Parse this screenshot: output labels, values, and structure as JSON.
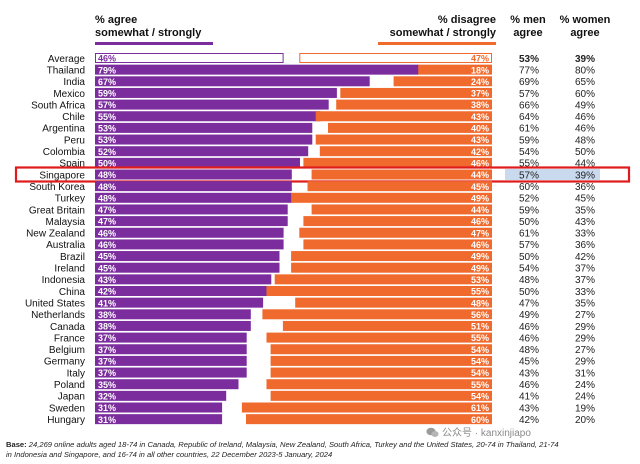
{
  "headers": {
    "agree_line1": "% agree",
    "agree_line2": "somewhat / strongly",
    "disagree_line1": "% disagree",
    "disagree_line2": "somewhat / strongly",
    "men_line1": "% men",
    "men_line2": "agree",
    "women_line1": "% women",
    "women_line2": "agree"
  },
  "chart_data": {
    "type": "bar",
    "xlim": [
      0,
      100
    ],
    "highlight_category": "Singapore",
    "categories": [
      "Average",
      "Thailand",
      "India",
      "Mexico",
      "South Africa",
      "Chile",
      "Argentina",
      "Peru",
      "Colombia",
      "Spain",
      "Singapore",
      "South Korea",
      "Turkey",
      "Great Britain",
      "Malaysia",
      "New Zealand",
      "Australia",
      "Brazil",
      "Ireland",
      "Indonesia",
      "China",
      "United States",
      "Netherlands",
      "Canada",
      "France",
      "Belgium",
      "Germany",
      "Italy",
      "Poland",
      "Japan",
      "Sweden",
      "Hungary"
    ],
    "series": [
      {
        "name": "% agree somewhat / strongly",
        "color": "#7b2d9e",
        "values": [
          46,
          79,
          67,
          59,
          57,
          55,
          53,
          53,
          52,
          50,
          48,
          48,
          48,
          47,
          47,
          46,
          46,
          45,
          45,
          43,
          42,
          41,
          38,
          38,
          37,
          37,
          37,
          37,
          35,
          32,
          31,
          31
        ],
        "labels": [
          "46%",
          "79%",
          "67%",
          "59%",
          "57%",
          "55%",
          "53%",
          "53%",
          "52%",
          "50%",
          "48%",
          "48%",
          "48%",
          "47%",
          "47%",
          "46%",
          "46%",
          "45%",
          "45%",
          "43%",
          "42%",
          "41%",
          "38%",
          "38%",
          "37%",
          "37%",
          "37%",
          "37%",
          "35%",
          "32%",
          "31%",
          "31%"
        ]
      },
      {
        "name": "% disagree somewhat / strongly",
        "color": "#f06a2d",
        "values": [
          47,
          18,
          24,
          37,
          38,
          43,
          40,
          43,
          42,
          46,
          44,
          45,
          49,
          44,
          46,
          47,
          46,
          49,
          49,
          53,
          55,
          48,
          56,
          51,
          55,
          54,
          54,
          54,
          55,
          54,
          61,
          60
        ],
        "labels": [
          "47%",
          "18%",
          "24%",
          "37%",
          "38%",
          "43%",
          "40%",
          "43%",
          "42%",
          "46%",
          "44%",
          "45%",
          "49%",
          "44%",
          "46%",
          "47%",
          "46%",
          "49%",
          "49%",
          "53%",
          "55%",
          "48%",
          "56%",
          "51%",
          "55%",
          "54%",
          "54%",
          "54%",
          "55%",
          "54%",
          "61%",
          "60%"
        ]
      },
      {
        "name": "% men agree",
        "values": [
          53,
          77,
          69,
          57,
          66,
          64,
          61,
          59,
          54,
          55,
          57,
          60,
          52,
          59,
          50,
          61,
          57,
          50,
          54,
          48,
          50,
          47,
          49,
          46,
          46,
          48,
          45,
          43,
          46,
          41,
          43,
          42
        ],
        "labels": [
          "53%",
          "77%",
          "69%",
          "57%",
          "66%",
          "64%",
          "61%",
          "59%",
          "54%",
          "55%",
          "57%",
          "60%",
          "52%",
          "59%",
          "50%",
          "61%",
          "57%",
          "50%",
          "54%",
          "48%",
          "50%",
          "47%",
          "49%",
          "46%",
          "46%",
          "48%",
          "45%",
          "43%",
          "46%",
          "41%",
          "43%",
          "42%"
        ]
      },
      {
        "name": "% women agree",
        "values": [
          39,
          80,
          65,
          60,
          49,
          46,
          46,
          48,
          50,
          44,
          39,
          36,
          45,
          35,
          43,
          33,
          36,
          42,
          37,
          37,
          33,
          35,
          27,
          29,
          29,
          27,
          29,
          31,
          24,
          24,
          19,
          20
        ],
        "labels": [
          "39%",
          "80%",
          "65%",
          "60%",
          "49%",
          "46%",
          "46%",
          "48%",
          "50%",
          "44%",
          "39%",
          "36%",
          "45%",
          "35%",
          "43%",
          "33%",
          "36%",
          "42%",
          "37%",
          "37%",
          "33%",
          "35%",
          "27%",
          "29%",
          "29%",
          "27%",
          "29%",
          "31%",
          "24%",
          "24%",
          "19%",
          "20%"
        ]
      }
    ]
  },
  "footer": {
    "base_label": "Base:",
    "base_text": " 24,269 online adults aged 18-74 in Canada, Republic of Ireland, Malaysia, New Zealand, South Africa, Turkey and the United States, 20-74 in Thailand, 21-74 in Indonesia and Singapore, and 16-74 in all other countries, 22 December 2023-5 January, 2024",
    "watermark": "公众号 · kanxinjiapo"
  }
}
